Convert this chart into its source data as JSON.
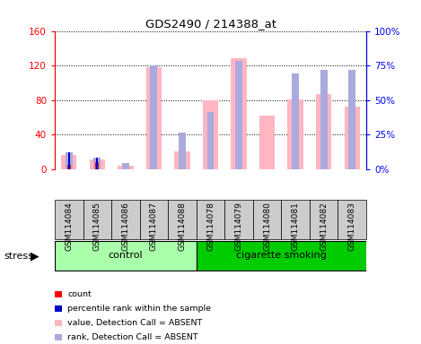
{
  "title": "GDS2490 / 214388_at",
  "samples": [
    "GSM114084",
    "GSM114085",
    "GSM114086",
    "GSM114087",
    "GSM114088",
    "GSM114078",
    "GSM114079",
    "GSM114080",
    "GSM114081",
    "GSM114082",
    "GSM114083"
  ],
  "absent_value": [
    16,
    11,
    4,
    118,
    20,
    79,
    128,
    62,
    81,
    87,
    72
  ],
  "absent_rank": [
    12,
    8,
    4,
    75,
    26,
    41,
    78,
    null,
    69,
    72,
    72
  ],
  "count": [
    5,
    8,
    0,
    0,
    0,
    0,
    0,
    0,
    0,
    0,
    0
  ],
  "pct_rank": [
    12,
    8,
    0,
    0,
    0,
    0,
    0,
    0,
    0,
    0,
    0
  ],
  "ylim_left": [
    0,
    160
  ],
  "yticks_left": [
    0,
    40,
    80,
    120,
    160
  ],
  "yticks_right": [
    0,
    25,
    50,
    75,
    100
  ],
  "absent_value_color": "#FFB6C1",
  "absent_rank_color": "#AAAADD",
  "count_color": "#FF0000",
  "rank_color": "#0000CC",
  "control_color": "#AAFFAA",
  "smoking_color": "#00CC00",
  "group_bg_color": "#CCCCCC",
  "legend_items": [
    "count",
    "percentile rank within the sample",
    "value, Detection Call = ABSENT",
    "rank, Detection Call = ABSENT"
  ],
  "legend_colors": [
    "#FF0000",
    "#0000CC",
    "#FFB6C1",
    "#AAAADD"
  ],
  "n_control": 5,
  "n_smoking": 6
}
